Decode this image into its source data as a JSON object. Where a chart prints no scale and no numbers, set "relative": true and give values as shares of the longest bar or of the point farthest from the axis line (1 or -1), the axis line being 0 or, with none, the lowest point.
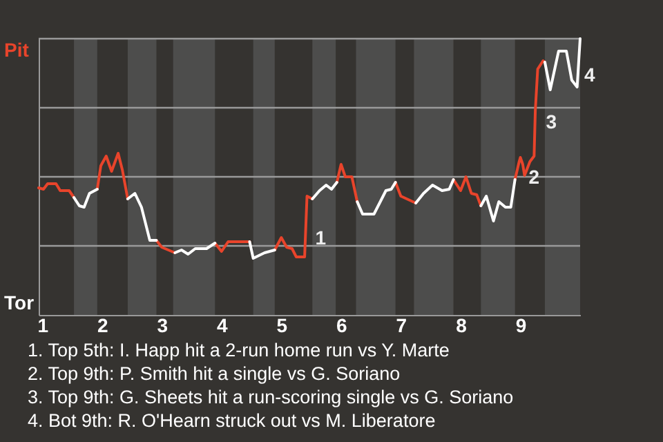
{
  "chart_data": {
    "type": "line",
    "relative": true,
    "x": [
      0.94,
      1.02,
      1.09,
      1.23,
      1.3,
      1.45,
      1.53,
      1.62,
      1.7,
      1.79,
      1.92,
      1.98,
      2.07,
      2.16,
      2.27,
      2.34,
      2.43,
      2.55,
      2.66,
      2.8,
      2.91,
      3.0,
      3.22,
      3.33,
      3.44,
      3.56,
      3.75,
      3.89,
      4.0,
      4.11,
      4.47,
      4.53,
      4.72,
      4.89,
      5.0,
      5.09,
      5.18,
      5.25,
      5.39,
      5.43,
      5.52,
      5.64,
      5.75,
      5.84,
      5.93,
      6.0,
      6.07,
      6.18,
      6.27,
      6.36,
      6.55,
      6.68,
      6.75,
      6.84,
      6.91,
      7.0,
      7.25,
      7.38,
      7.53,
      7.69,
      7.81,
      7.88,
      8.0,
      8.09,
      8.18,
      8.27,
      8.34,
      8.43,
      8.55,
      8.64,
      8.75,
      8.84,
      8.91,
      8.98,
      9.0,
      9.04,
      9.07,
      9.16,
      9.23,
      9.25,
      9.29,
      9.38,
      9.41,
      9.5,
      9.64,
      9.77,
      9.86,
      9.95,
      10.0
    ],
    "series": [
      {
        "color": "#e8442b",
        "values": [
          0.46,
          0.455,
          0.475,
          0.475,
          0.45,
          0.45,
          0.425,
          null,
          null,
          null,
          0.455,
          0.54,
          0.575,
          0.52,
          0.585,
          0.525,
          0.42,
          null,
          null,
          null,
          0.27,
          0.245,
          0.225,
          null,
          null,
          null,
          null,
          0.26,
          0.23,
          0.265,
          0.265,
          null,
          null,
          0.235,
          0.28,
          0.245,
          0.24,
          0.21,
          0.21,
          0.43,
          0.42,
          null,
          null,
          null,
          0.48,
          0.545,
          0.5,
          0.5,
          0.41,
          null,
          null,
          null,
          null,
          null,
          0.48,
          0.43,
          0.405,
          null,
          null,
          null,
          null,
          0.49,
          0.45,
          0.5,
          0.44,
          0.435,
          0.395,
          null,
          null,
          null,
          null,
          null,
          0.49,
          0.555,
          0.57,
          0.545,
          0.505,
          0.555,
          0.575,
          0.74,
          0.89,
          0.92,
          0.915,
          null,
          null,
          null,
          null,
          null,
          null
        ]
      },
      {
        "color": "#ffffff",
        "values": [
          null,
          null,
          null,
          null,
          null,
          null,
          0.425,
          0.395,
          0.39,
          0.44,
          0.455,
          null,
          null,
          null,
          null,
          null,
          0.42,
          0.44,
          0.39,
          0.27,
          0.27,
          null,
          0.225,
          0.235,
          0.22,
          0.24,
          0.24,
          0.26,
          null,
          null,
          0.265,
          0.205,
          0.225,
          0.235,
          null,
          null,
          null,
          null,
          null,
          null,
          0.42,
          0.45,
          0.47,
          0.455,
          0.48,
          null,
          null,
          null,
          0.41,
          0.365,
          0.365,
          0.42,
          0.45,
          0.455,
          0.48,
          null,
          0.405,
          0.44,
          0.47,
          0.45,
          0.455,
          0.49,
          null,
          null,
          null,
          null,
          0.395,
          0.43,
          0.34,
          0.41,
          0.39,
          0.39,
          0.49,
          null,
          null,
          null,
          null,
          null,
          null,
          null,
          null,
          null,
          0.915,
          0.815,
          0.955,
          0.955,
          0.85,
          0.825,
          1
        ]
      }
    ],
    "xlim": [
      0.94,
      10
    ],
    "xticks": [
      1,
      2,
      3,
      4,
      5,
      6,
      7,
      8,
      9
    ],
    "bands": [
      {
        "axis": "x",
        "from": 1.53,
        "to": 1.92,
        "color": "#4d4d4c"
      },
      {
        "axis": "x",
        "from": 2.43,
        "to": 2.91,
        "color": "#4d4d4c"
      },
      {
        "axis": "x",
        "from": 3.19,
        "to": 3.89,
        "color": "#4d4d4c"
      },
      {
        "axis": "x",
        "from": 4.53,
        "to": 4.89,
        "color": "#4d4d4c"
      },
      {
        "axis": "x",
        "from": 5.52,
        "to": 5.91,
        "color": "#4d4d4c"
      },
      {
        "axis": "x",
        "from": 6.25,
        "to": 6.91,
        "color": "#4d4d4c"
      },
      {
        "axis": "x",
        "from": 7.22,
        "to": 7.88,
        "color": "#4d4d4c"
      },
      {
        "axis": "x",
        "from": 8.34,
        "to": 8.91,
        "color": "#4d4d4c"
      },
      {
        "axis": "x",
        "from": 9.41,
        "to": 10,
        "color": "#4d4d4c"
      }
    ],
    "ref_lines": [
      {
        "axis": "y",
        "value": 0.25,
        "color": "#9a9a9a"
      },
      {
        "axis": "y",
        "value": 0.5,
        "color": "#9a9a9a"
      },
      {
        "axis": "y",
        "value": 0.75,
        "color": "#9a9a9a"
      },
      {
        "axis": "y",
        "value": 1,
        "color": "#9a9a9a"
      }
    ],
    "annotations": [
      "Pit",
      "Tor",
      {
        "text": "1",
        "x": 5.5,
        "y": 0.285
      },
      {
        "text": "2",
        "x": 9.07,
        "y": 0.505
      },
      {
        "text": "3",
        "x": 9.36,
        "y": 0.705
      },
      {
        "text": "4",
        "x": 10,
        "y": 0.875
      },
      "1. Top 5th: I. Happ hit a 2-run home run vs Y. Marte",
      "2. Top 9th: P. Smith hit a single vs G. Soriano",
      "3. Top 9th: G. Sheets hit a run-scoring single vs G. Soriano",
      "4. Bot 9th: R. O'Hearn struck out vs M. Liberatore"
    ],
    "marker": "none",
    "line_style": "solid"
  }
}
